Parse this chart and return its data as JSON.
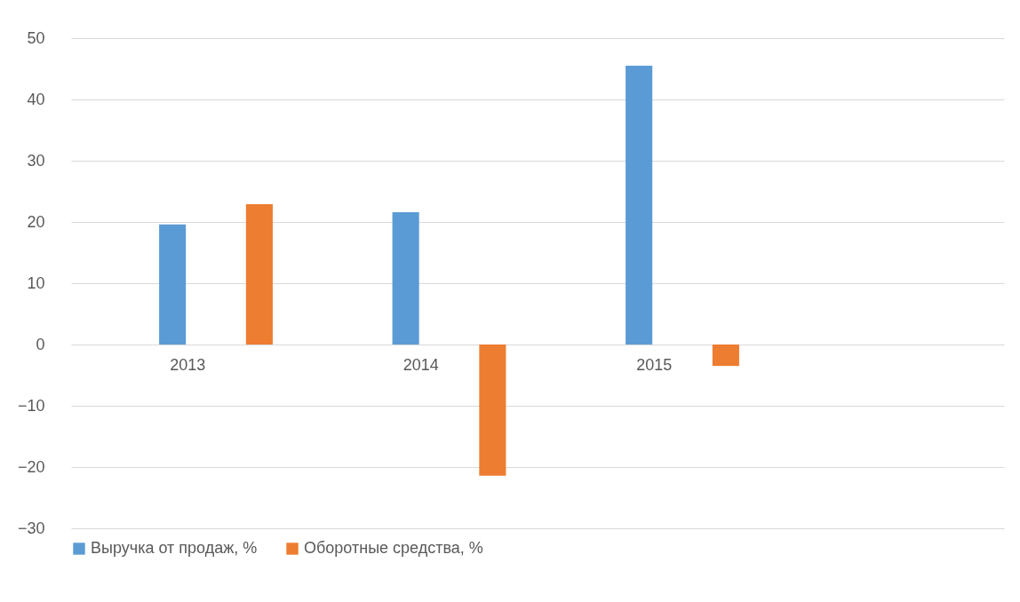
{
  "chart_data": {
    "type": "bar",
    "categories": [
      "2013",
      "2014",
      "2015",
      null
    ],
    "series": [
      {
        "name": "Выручка от продаж, %",
        "color": "#5b9bd5",
        "values": [
          19.6,
          21.6,
          45.5,
          null
        ]
      },
      {
        "name": "Оборотные средства, %",
        "color": "#ed7d31",
        "values": [
          22.9,
          -21.4,
          -3.5,
          null
        ]
      }
    ],
    "ylim": [
      -30,
      50
    ],
    "yticks": [
      -30,
      -20,
      -10,
      0,
      10,
      20,
      30,
      40,
      50
    ],
    "grid": "y",
    "legend": "bottom"
  }
}
